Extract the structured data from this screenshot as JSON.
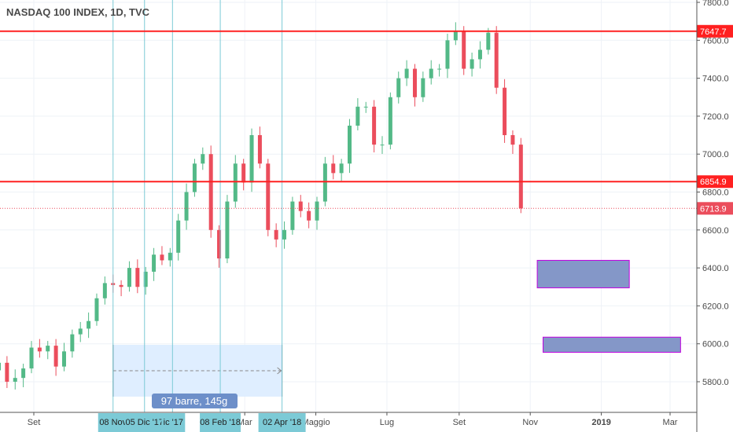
{
  "header": {
    "title": "NASDAQ 100 INDEX, 1D, TVC"
  },
  "colors": {
    "up": "#53b987",
    "down": "#eb4d5c",
    "hline": "#ff2020",
    "vline": "#7ccad6",
    "range_fill": "#dfeeff",
    "rect_fill": "#8497c8",
    "rect_border": "#c000e0",
    "tooltip": "#6d8fc9"
  },
  "measure": {
    "label": "97 barre, 145g"
  },
  "chart_data": {
    "type": "candlestick",
    "title": "NASDAQ 100 INDEX, 1D, TVC",
    "ylim": [
      5700,
      7820
    ],
    "y_ticks": [
      "7800.0",
      "7600.0",
      "7400.0",
      "7200.0",
      "7000.0",
      "6800.0",
      "6600.0",
      "6400.0",
      "6200.0",
      "6000.0",
      "5800.0"
    ],
    "x_ticks": [
      {
        "label": "Set",
        "date": "2017-09-01"
      },
      {
        "label": "Mar",
        "date": "2018-03-01"
      },
      {
        "label": "Maggio",
        "date": "2018-05-01"
      },
      {
        "label": "Lug",
        "date": "2018-07-01"
      },
      {
        "label": "Set",
        "date": "2018-09-01"
      },
      {
        "label": "Nov",
        "date": "2018-11-01"
      },
      {
        "label": "2019",
        "date": "2019-01-01"
      },
      {
        "label": "Mar",
        "date": "2019-03-01"
      }
    ],
    "weekly_closes": [
      5900,
      5800,
      5820,
      5870,
      5980,
      5960,
      5990,
      5880,
      5960,
      6050,
      6080,
      6120,
      6240,
      6320,
      6310,
      6300,
      6400,
      6300,
      6380,
      6470,
      6440,
      6480,
      6650,
      6800,
      6950,
      7000,
      6600,
      6450,
      6750,
      6950,
      6850,
      7100,
      6950,
      6600,
      6550,
      6600,
      6750,
      6700,
      6650,
      6750,
      6950,
      6900,
      6950,
      7150,
      7250,
      7250,
      7050,
      7050,
      7300,
      7400,
      7450,
      7300,
      7400,
      7450,
      7450,
      7600,
      7650,
      7450,
      7500,
      7550,
      7640,
      7350,
      7100,
      7050,
      6713.9
    ],
    "first_week": "2017-08-04",
    "horizontal_lines": [
      {
        "value": 7647.7,
        "label": "7647.7"
      },
      {
        "value": 6854.9,
        "label": "6854.9"
      }
    ],
    "last_price": {
      "value": 6713.9,
      "label": "6713.9"
    },
    "vertical_lines": [
      {
        "date": "2017-11-08",
        "label": "08 Nov"
      },
      {
        "date": "2017-12-05",
        "label": "05 Dic '17"
      },
      {
        "date": "2017-12-29",
        "label": "ic '17"
      },
      {
        "date": "2018-02-08",
        "label": "08 Feb '18"
      },
      {
        "date": "2018-04-02",
        "label": "02 Apr '18"
      }
    ],
    "date_range": {
      "from": "2017-11-08",
      "to": "2018-04-02"
    },
    "rectangles": [
      {
        "from": "2018-11-07",
        "to": "2019-01-25",
        "top": 6440,
        "bottom": 6295
      },
      {
        "from": "2018-11-12",
        "to": "2019-03-10",
        "top": 6035,
        "bottom": 5955
      }
    ]
  }
}
